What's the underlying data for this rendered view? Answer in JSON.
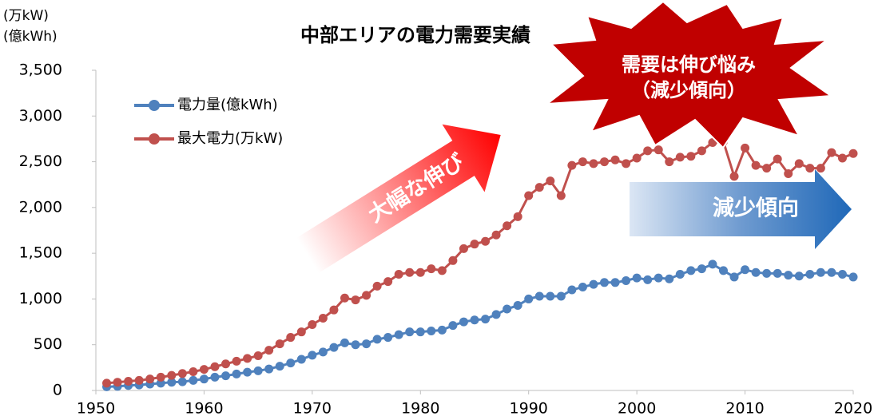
{
  "chart_data": {
    "type": "line",
    "title": "中部エリアの電力需要実績",
    "y_units": [
      "(万kW)",
      "(億kWh)"
    ],
    "x": [
      1951,
      1952,
      1953,
      1954,
      1955,
      1956,
      1957,
      1958,
      1959,
      1960,
      1961,
      1962,
      1963,
      1964,
      1965,
      1966,
      1967,
      1968,
      1969,
      1970,
      1971,
      1972,
      1973,
      1974,
      1975,
      1976,
      1977,
      1978,
      1979,
      1980,
      1981,
      1982,
      1983,
      1984,
      1985,
      1986,
      1987,
      1988,
      1989,
      1990,
      1991,
      1992,
      1993,
      1994,
      1995,
      1996,
      1997,
      1998,
      1999,
      2000,
      2001,
      2002,
      2003,
      2004,
      2005,
      2006,
      2007,
      2008,
      2009,
      2010,
      2011,
      2012,
      2013,
      2014,
      2015,
      2016,
      2017,
      2018,
      2019,
      2020
    ],
    "series": [
      {
        "name": "電力量(億kWh)",
        "color": "#4f81bd",
        "values": [
          40,
          45,
          55,
          60,
          70,
          80,
          90,
          95,
          110,
          125,
          145,
          160,
          180,
          200,
          215,
          235,
          265,
          300,
          340,
          385,
          420,
          470,
          520,
          500,
          510,
          560,
          580,
          610,
          640,
          640,
          650,
          660,
          710,
          750,
          770,
          780,
          830,
          890,
          930,
          1000,
          1030,
          1030,
          1030,
          1100,
          1130,
          1160,
          1180,
          1180,
          1200,
          1230,
          1210,
          1230,
          1220,
          1270,
          1310,
          1330,
          1380,
          1310,
          1240,
          1320,
          1290,
          1280,
          1280,
          1260,
          1250,
          1270,
          1290,
          1290,
          1270,
          1240
        ]
      },
      {
        "name": "最大電力(万kW)",
        "color": "#c0504d",
        "values": [
          80,
          90,
          100,
          110,
          125,
          145,
          165,
          185,
          205,
          230,
          260,
          290,
          320,
          350,
          380,
          440,
          510,
          580,
          640,
          720,
          790,
          880,
          1010,
          990,
          1040,
          1140,
          1190,
          1270,
          1290,
          1290,
          1330,
          1310,
          1420,
          1550,
          1600,
          1630,
          1700,
          1800,
          1900,
          2130,
          2220,
          2290,
          2130,
          2460,
          2500,
          2480,
          2500,
          2520,
          2480,
          2540,
          2620,
          2630,
          2500,
          2550,
          2560,
          2620,
          2710,
          2720,
          2340,
          2650,
          2460,
          2430,
          2530,
          2370,
          2480,
          2430,
          2430,
          2600,
          2540,
          2590
        ]
      }
    ],
    "xlim": [
      1950,
      2020
    ],
    "xticks": [
      1950,
      1960,
      1970,
      1980,
      1990,
      2000,
      2010,
      2020
    ],
    "ylim": [
      0,
      3500
    ],
    "yticks": [
      0,
      500,
      {
        "value": 1000,
        "label": "1,000"
      },
      {
        "value": 1500,
        "label": "1,500"
      },
      {
        "value": 2000,
        "label": "2,000"
      },
      {
        "value": 2500,
        "label": "2,500"
      },
      {
        "value": 3000,
        "label": "3,000"
      },
      {
        "value": 3500,
        "label": "3,500"
      }
    ],
    "grid": false,
    "legend": "upper left",
    "annotations": [
      "大幅な伸び",
      "減少傾向",
      "需要は伸び悩み",
      "（減少傾向）"
    ]
  }
}
